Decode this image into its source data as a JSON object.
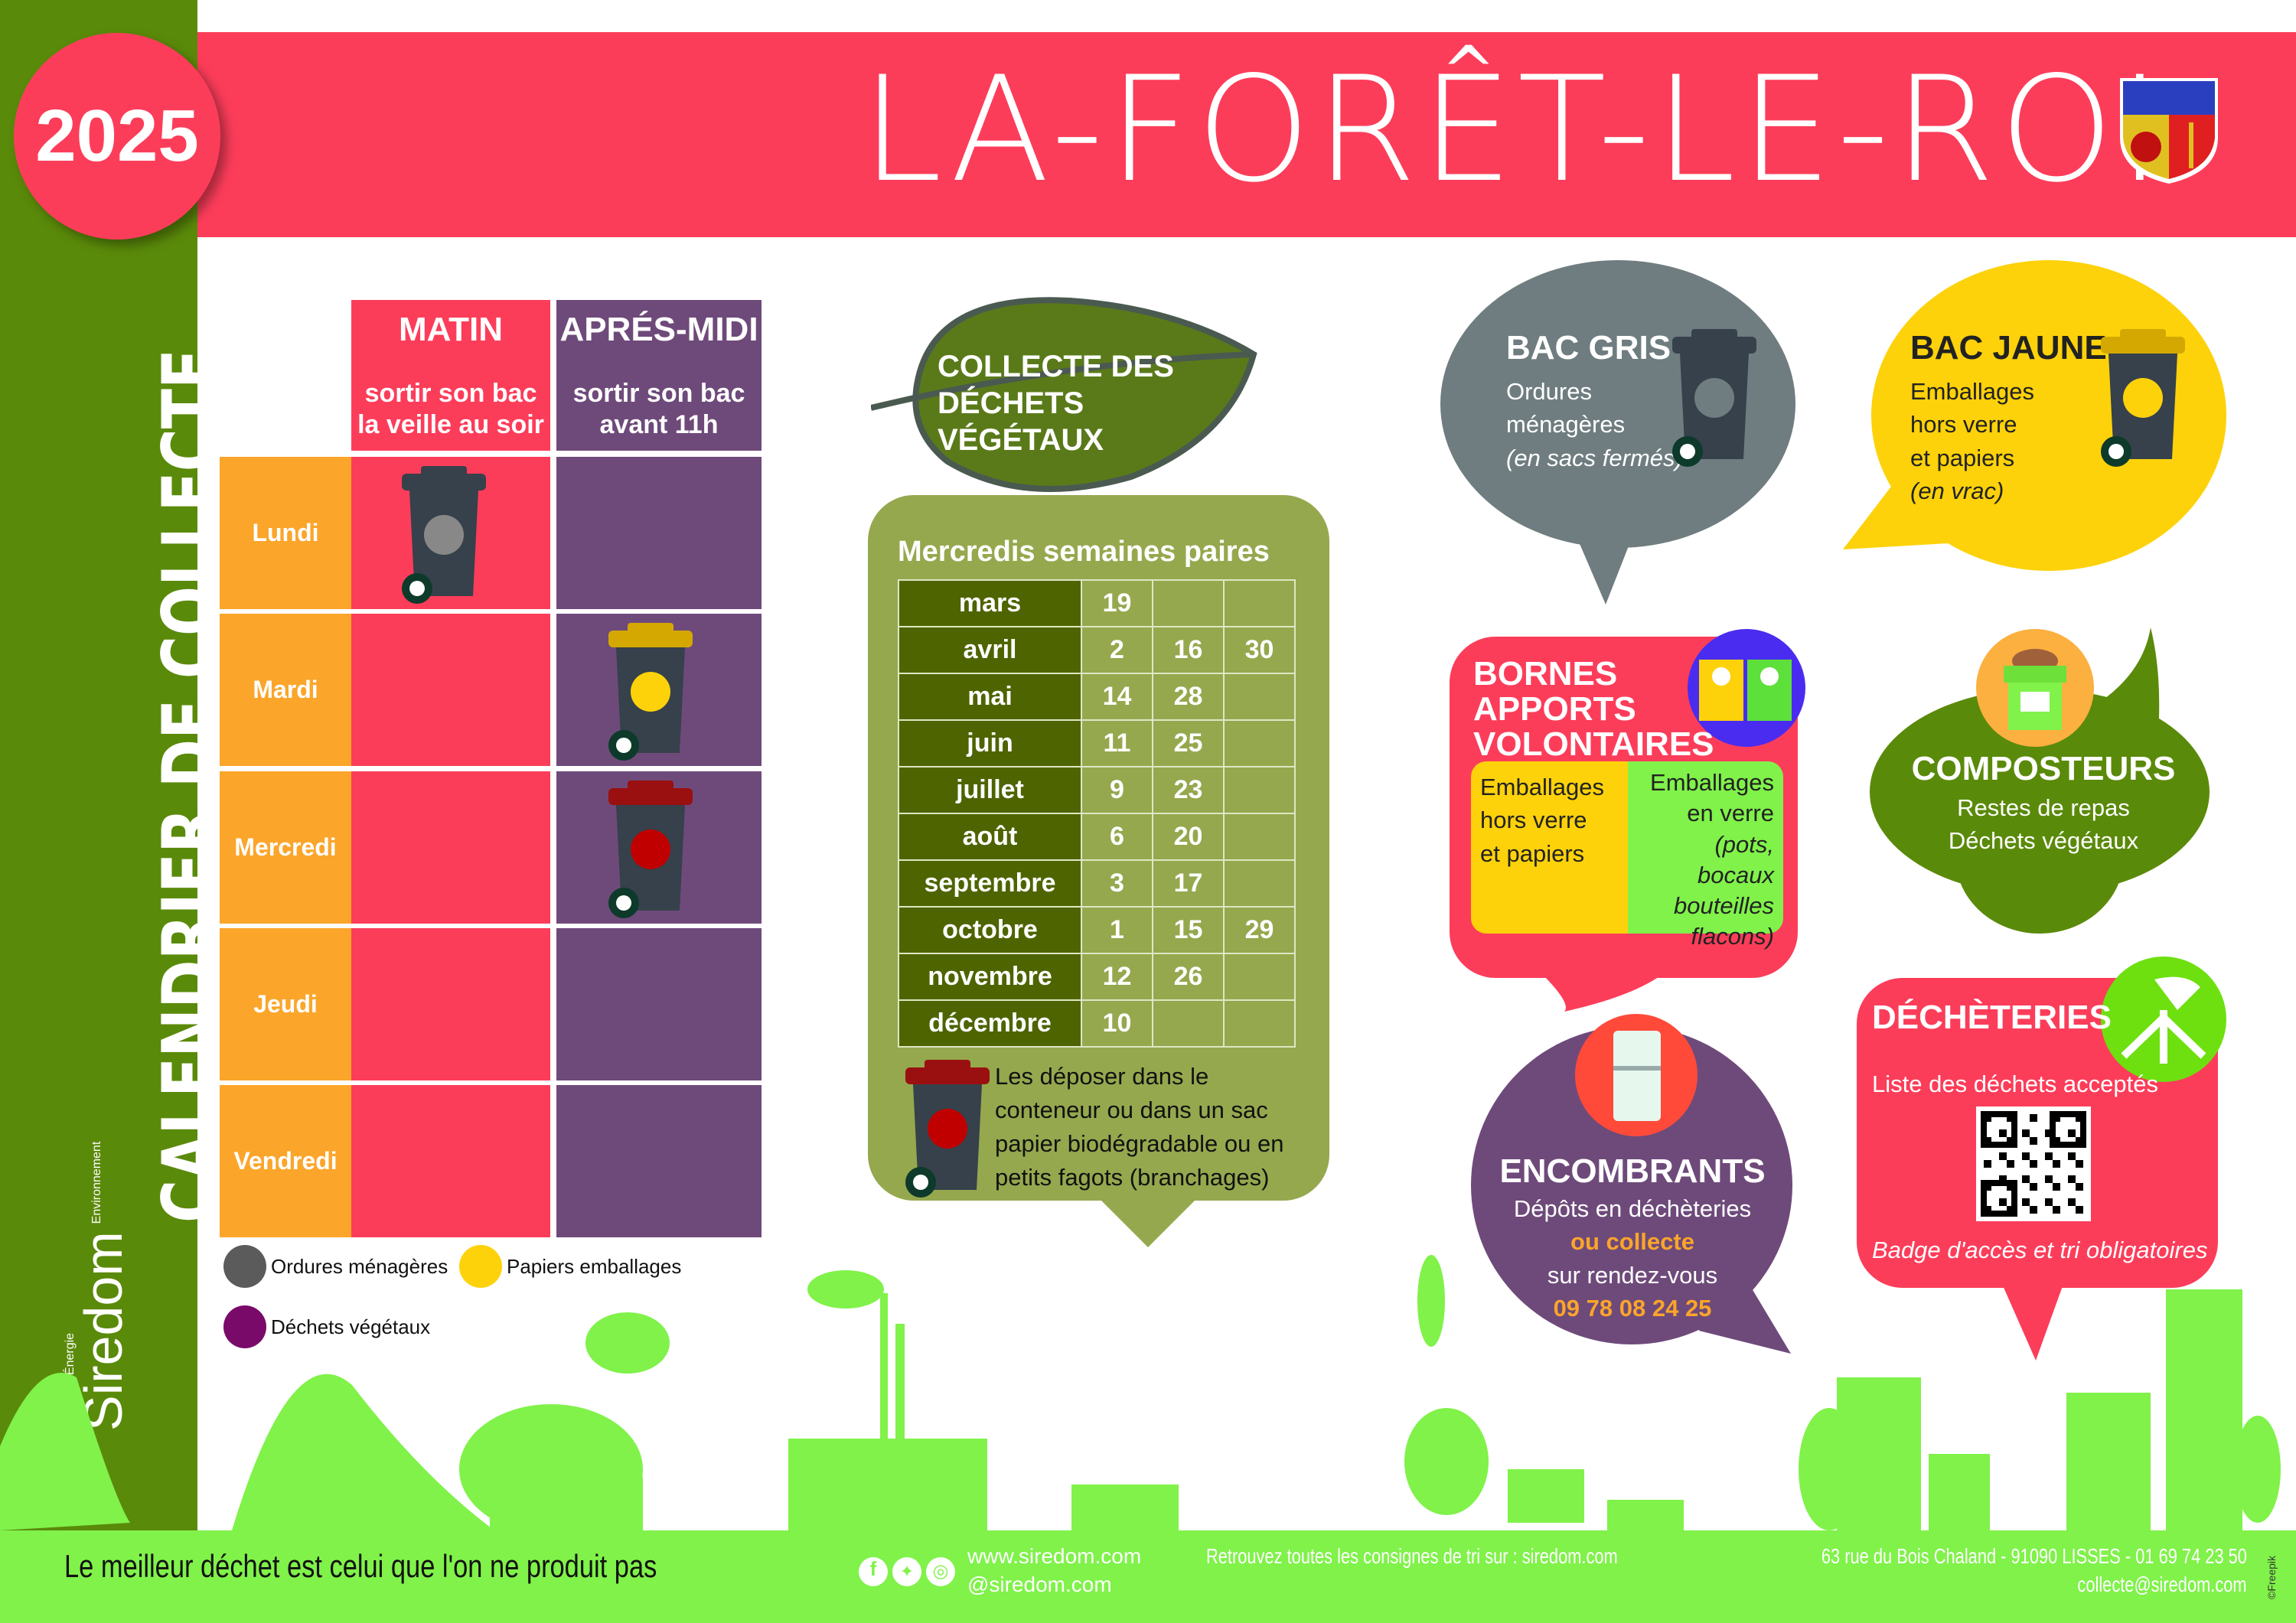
{
  "header": {
    "year": "2025",
    "town": "LA-FORÊT-LE-ROI"
  },
  "sidebar": {
    "title": "CALENDRIER DE COLLECTE",
    "logo_name": "Siredom",
    "logo_tag_left": "Déchets · Énergie",
    "logo_tag_right": "Environnement"
  },
  "schedule": {
    "columns": [
      {
        "label": "MATIN",
        "sub": "sortir son bac la veille au soir"
      },
      {
        "label": "APRÉS-MIDI",
        "sub": "sortir son bac avant 11h"
      }
    ],
    "days": [
      "Lundi",
      "Mardi",
      "Mercredi",
      "Jeudi",
      "Vendredi"
    ],
    "entries": [
      {
        "day": "Lundi",
        "slot": "MATIN",
        "bin": "gris"
      },
      {
        "day": "Mardi",
        "slot": "APRÉS-MIDI",
        "bin": "jaune"
      },
      {
        "day": "Mercredi",
        "slot": "APRÉS-MIDI",
        "bin": "végétaux"
      }
    ]
  },
  "legend": [
    {
      "label": "Ordures ménagères",
      "color": "#5b5b5b"
    },
    {
      "label": "Papiers emballages",
      "color": "#fdd20a"
    },
    {
      "label": "Déchets végétaux",
      "color": "#7a0a6a"
    }
  ],
  "vegetal": {
    "title": "COLLECTE DES DÉCHETS VÉGÉTAUX",
    "subtitle": "Mercredis semaines paires",
    "months": [
      {
        "m": "mars",
        "d": [
          "19",
          "",
          ""
        ]
      },
      {
        "m": "avril",
        "d": [
          "2",
          "16",
          "30"
        ]
      },
      {
        "m": "mai",
        "d": [
          "14",
          "28",
          ""
        ]
      },
      {
        "m": "juin",
        "d": [
          "11",
          "25",
          ""
        ]
      },
      {
        "m": "juillet",
        "d": [
          "9",
          "23",
          ""
        ]
      },
      {
        "m": "août",
        "d": [
          "6",
          "20",
          ""
        ]
      },
      {
        "m": "septembre",
        "d": [
          "3",
          "17",
          ""
        ]
      },
      {
        "m": "octobre",
        "d": [
          "1",
          "15",
          "29"
        ]
      },
      {
        "m": "novembre",
        "d": [
          "12",
          "26",
          ""
        ]
      },
      {
        "m": "décembre",
        "d": [
          "10",
          "",
          ""
        ]
      }
    ],
    "note": "Les déposer dans le conteneur ou dans un sac papier biodégradable ou en petits fagots (branchages)"
  },
  "bac_gris": {
    "title": "BAC GRIS",
    "l1": "Ordures",
    "l2": "ménagères",
    "l3": "(en sacs fermés)"
  },
  "bac_jaune": {
    "title": "BAC JAUNE",
    "l1": "Emballages",
    "l2": "hors verre",
    "l3": "et papiers",
    "l4": "(en vrac)"
  },
  "bornes": {
    "title1": "BORNES",
    "title2": "APPORTS",
    "title3": "VOLONTAIRES",
    "left1": "Emballages",
    "left2": "hors verre",
    "left3": "et papiers",
    "right1": "Emballages",
    "right2": "en verre",
    "right3": "(pots, bocaux",
    "right4": "bouteilles",
    "right5": "flacons)"
  },
  "composteurs": {
    "title": "COMPOSTEURS",
    "l1": "Restes de repas",
    "l2": "Déchets végétaux"
  },
  "encombrants": {
    "title": "ENCOMBRANTS",
    "l1": "Dépôts en déchèteries",
    "l2": "ou collecte",
    "l3": "sur rendez-vous",
    "phone": "09 78 08 24 25"
  },
  "decheteries": {
    "title": "DÉCHÈTERIES",
    "l1": "Liste des déchets acceptés",
    "l2": "Badge d'accès et tri obligatoires"
  },
  "footer": {
    "slogan": "Le meilleur déchet est celui que l'on ne produit pas",
    "web": "www.siredom.com",
    "social": "@siredom.com",
    "consignes": "Retrouvez toutes les consignes de tri sur : siredom.com",
    "address": "63 rue du Bois Chaland - 91090 LISSES - 01 69 74 23 50",
    "email": "collecte@siredom.com",
    "credit": "©Freepik"
  },
  "colors": {
    "red": "#fc3d5a",
    "purple": "#6e4a7a",
    "orange": "#fba52a",
    "green": "#5a8a0a",
    "lime": "#80f24a",
    "olive": "#95a84e",
    "yellow": "#fdd20a",
    "grey": "#6f7d80"
  }
}
